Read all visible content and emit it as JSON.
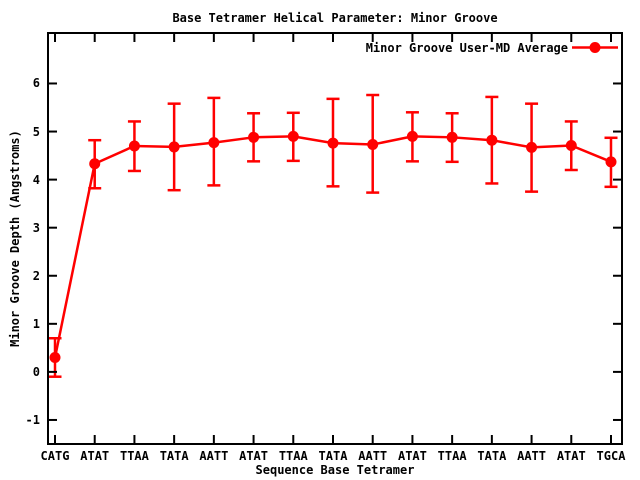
{
  "title": "Base Tetramer Helical Parameter: Minor Groove",
  "axes": {
    "ylabel": "Minor Groove Depth (Angstroms)",
    "xlabel": "Sequence Base Tetramer"
  },
  "legend": {
    "label": "Minor Groove User-MD Average",
    "position": "top-right-inside"
  },
  "colors": {
    "series": "#ff0000",
    "axis": "#000000",
    "background": "#ffffff"
  },
  "chart_data": {
    "type": "line",
    "title": "Base Tetramer Helical Parameter: Minor Groove",
    "xlabel": "Sequence Base Tetramer",
    "ylabel": "Minor Groove Depth (Angstroms)",
    "grid": false,
    "legend_position": "top-right",
    "marker": "filled-circle",
    "error_bars": true,
    "ylim": [
      -1.5,
      7.05
    ],
    "yticks": [
      -1,
      0,
      1,
      2,
      3,
      4,
      5,
      6
    ],
    "categories": [
      "CATG",
      "ATAT",
      "TTAA",
      "TATA",
      "AATT",
      "ATAT",
      "TTAA",
      "TATA",
      "AATT",
      "ATAT",
      "TTAA",
      "TATA",
      "AATT",
      "ATAT",
      "TGCA"
    ],
    "series": [
      {
        "name": "Minor Groove User-MD Average",
        "color": "#ff0000",
        "values": [
          0.3,
          4.33,
          4.7,
          4.68,
          4.77,
          4.88,
          4.9,
          4.76,
          4.73,
          4.9,
          4.88,
          4.82,
          4.67,
          4.71,
          4.37
        ],
        "err_low": [
          -0.1,
          3.82,
          4.18,
          3.78,
          3.88,
          4.38,
          4.39,
          3.86,
          3.73,
          4.38,
          4.37,
          3.92,
          3.75,
          4.2,
          3.85
        ],
        "err_high": [
          0.7,
          4.82,
          5.21,
          5.58,
          5.7,
          5.38,
          5.39,
          5.68,
          5.76,
          5.4,
          5.38,
          5.72,
          5.58,
          5.21,
          4.87
        ]
      }
    ]
  }
}
